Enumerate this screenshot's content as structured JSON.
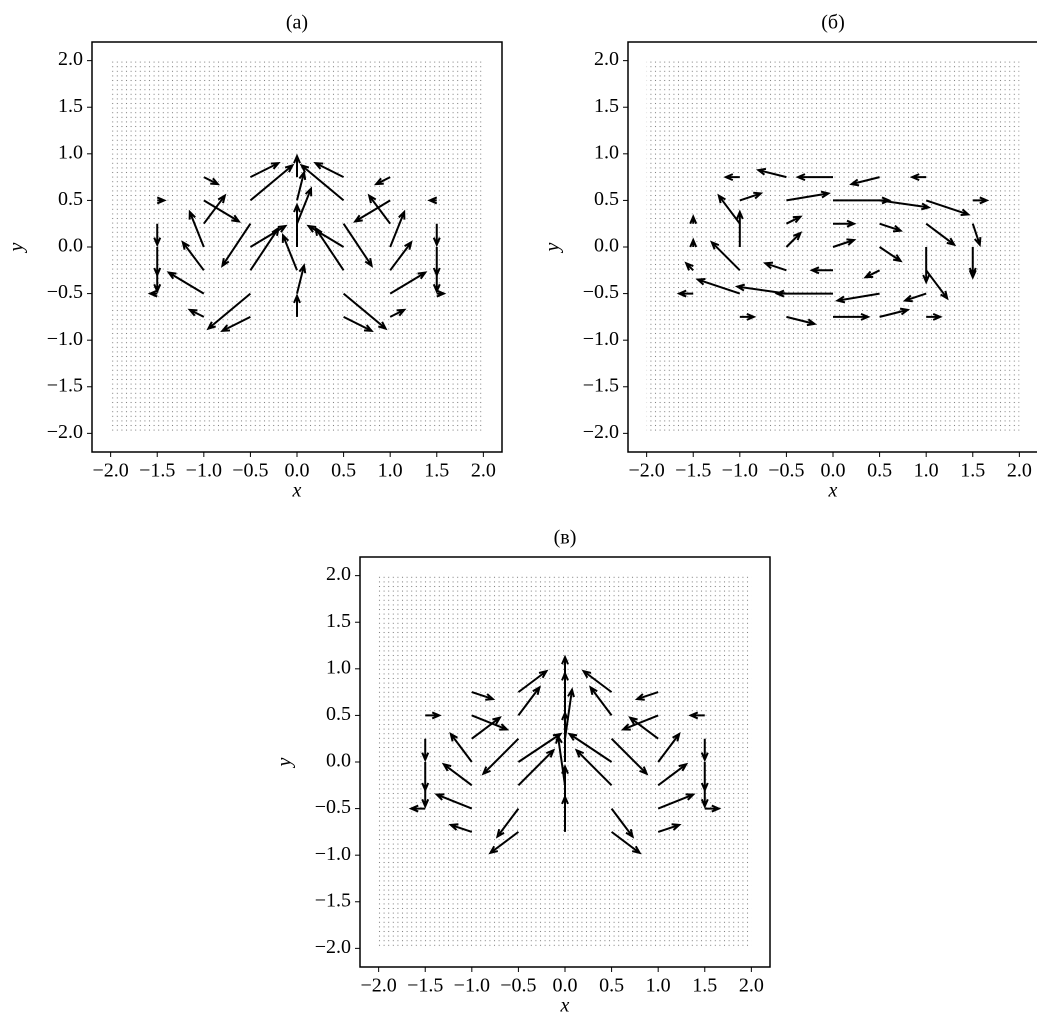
{
  "chart_data": [
    {
      "type": "quiver",
      "title": "(a)",
      "x_label": "x",
      "y_label": "y",
      "xlim": [
        -2.2,
        2.2
      ],
      "ylim": [
        -2.2,
        2.2
      ],
      "xticks": [
        {
          "value": -2,
          "label": "−2.0"
        },
        {
          "value": -1.5,
          "label": "−1.5"
        },
        {
          "value": -1,
          "label": "−1.0"
        },
        {
          "value": -0.5,
          "label": "−0.5"
        },
        {
          "value": 0,
          "label": "0.0"
        },
        {
          "value": 0.5,
          "label": "0.5"
        },
        {
          "value": 1,
          "label": "1.0"
        },
        {
          "value": 1.5,
          "label": "1.5"
        },
        {
          "value": 2,
          "label": "2.0"
        }
      ],
      "yticks": [
        {
          "value": -2,
          "label": "−2.0"
        },
        {
          "value": -1.5,
          "label": "−1.5"
        },
        {
          "value": -1,
          "label": "−1.0"
        },
        {
          "value": -0.5,
          "label": "−0.5"
        },
        {
          "value": 0,
          "label": "0.0"
        },
        {
          "value": 0.5,
          "label": "0.5"
        },
        {
          "value": 1,
          "label": "1.0"
        },
        {
          "value": 1.5,
          "label": "1.5"
        },
        {
          "value": 2,
          "label": "2.0"
        }
      ],
      "x": [
        -1.5,
        -1,
        -0.5,
        0,
        0.5,
        1,
        1.5
      ],
      "y": [
        0.75,
        0.5,
        0.25,
        0,
        -0.25,
        -0.5,
        -0.75
      ],
      "u": [
        [
          0,
          0.2,
          0.4,
          0,
          -0.4,
          -0.2,
          0
        ],
        [
          0.1,
          0.5,
          0.6,
          0.1,
          -0.6,
          -0.5,
          -0.1
        ],
        [
          0,
          0.3,
          -0.4,
          0.2,
          0.4,
          -0.3,
          0
        ],
        [
          0,
          -0.2,
          0.5,
          0,
          -0.5,
          0.2,
          0
        ],
        [
          0,
          -0.3,
          0.4,
          -0.2,
          -0.4,
          0.3,
          0
        ],
        [
          -0.1,
          -0.5,
          -0.6,
          0.1,
          0.6,
          0.5,
          0.1
        ],
        [
          0,
          -0.2,
          -0.4,
          0,
          0.4,
          0.2,
          0
        ]
      ],
      "v": [
        [
          0,
          -0.1,
          0.2,
          0.3,
          0.2,
          -0.1,
          0
        ],
        [
          0,
          -0.3,
          0.5,
          0.4,
          0.5,
          -0.3,
          0
        ],
        [
          -0.3,
          0.4,
          -0.6,
          0.5,
          -0.6,
          0.4,
          -0.3
        ],
        [
          -0.4,
          0.5,
          0.3,
          0.6,
          0.3,
          0.5,
          -0.4
        ],
        [
          -0.3,
          0.4,
          0.6,
          0.5,
          0.6,
          0.4,
          -0.3
        ],
        [
          0,
          0.3,
          -0.5,
          0.4,
          -0.5,
          0.3,
          0
        ],
        [
          0,
          0.1,
          -0.2,
          0.3,
          -0.2,
          0.1,
          0
        ]
      ]
    },
    {
      "type": "quiver",
      "title": "(б)",
      "x_label": "x",
      "y_label": "y",
      "xlim": [
        -2.2,
        2.2
      ],
      "ylim": [
        -2.2,
        2.2
      ],
      "xticks": [
        {
          "value": -2,
          "label": "−2.0"
        },
        {
          "value": -1.5,
          "label": "−1.5"
        },
        {
          "value": -1,
          "label": "−1.0"
        },
        {
          "value": -0.5,
          "label": "−0.5"
        },
        {
          "value": 0,
          "label": "0.0"
        },
        {
          "value": 0.5,
          "label": "0.5"
        },
        {
          "value": 1,
          "label": "1.0"
        },
        {
          "value": 1.5,
          "label": "1.5"
        },
        {
          "value": 2,
          "label": "2.0"
        }
      ],
      "yticks": [
        {
          "value": -2,
          "label": "−2.0"
        },
        {
          "value": -1.5,
          "label": "−1.5"
        },
        {
          "value": -1,
          "label": "−1.0"
        },
        {
          "value": -0.5,
          "label": "−0.5"
        },
        {
          "value": 0,
          "label": "0.0"
        },
        {
          "value": 0.5,
          "label": "0.5"
        },
        {
          "value": 1,
          "label": "1.0"
        },
        {
          "value": 1.5,
          "label": "1.5"
        },
        {
          "value": 2,
          "label": "2.0"
        }
      ],
      "x": [
        -1.5,
        -1,
        -0.5,
        0,
        0.5,
        1,
        1.5
      ],
      "y": [
        0.75,
        0.5,
        0.25,
        0,
        -0.25,
        -0.5,
        -0.75
      ],
      "u": [
        [
          0,
          -0.2,
          -0.4,
          -0.5,
          -0.4,
          -0.2,
          0
        ],
        [
          0,
          0.3,
          0.6,
          0.8,
          0.7,
          0.6,
          0.2
        ],
        [
          0,
          -0.3,
          0.2,
          0.3,
          0.3,
          0.4,
          0.1
        ],
        [
          0,
          0,
          0.2,
          0.3,
          0.3,
          0,
          0
        ],
        [
          -0.1,
          -0.4,
          -0.3,
          -0.3,
          -0.2,
          0.3,
          0
        ],
        [
          -0.2,
          -0.6,
          -0.7,
          -0.8,
          -0.6,
          -0.3,
          0
        ],
        [
          0,
          0.2,
          0.4,
          0.5,
          0.4,
          0.2,
          0
        ]
      ],
      "v": [
        [
          0,
          0,
          0.1,
          0,
          -0.1,
          0,
          0
        ],
        [
          0,
          0.1,
          0.1,
          0,
          -0.1,
          -0.2,
          0
        ],
        [
          0.1,
          0.4,
          0.1,
          0,
          -0.1,
          -0.3,
          -0.3
        ],
        [
          0.1,
          0.5,
          0.2,
          0.1,
          -0.2,
          -0.5,
          -0.4
        ],
        [
          0.1,
          0.4,
          0.1,
          0,
          -0.1,
          -0.4,
          -0.1
        ],
        [
          0,
          0.2,
          0.1,
          0,
          -0.1,
          -0.1,
          0
        ],
        [
          0,
          0,
          -0.1,
          0,
          0.1,
          0,
          0
        ]
      ]
    },
    {
      "type": "quiver",
      "title": "(в)",
      "x_label": "x",
      "y_label": "y",
      "xlim": [
        -2.2,
        2.2
      ],
      "ylim": [
        -2.2,
        2.2
      ],
      "xticks": [
        {
          "value": -2,
          "label": "−2.0"
        },
        {
          "value": -1.5,
          "label": "−1.5"
        },
        {
          "value": -1,
          "label": "−1.0"
        },
        {
          "value": -0.5,
          "label": "−0.5"
        },
        {
          "value": 0,
          "label": "0.0"
        },
        {
          "value": 0.5,
          "label": "0.5"
        },
        {
          "value": 1,
          "label": "1.0"
        },
        {
          "value": 1.5,
          "label": "1.5"
        },
        {
          "value": 2,
          "label": "2.0"
        }
      ],
      "yticks": [
        {
          "value": -2,
          "label": "−2.0"
        },
        {
          "value": -1.5,
          "label": "−1.5"
        },
        {
          "value": -1,
          "label": "−1.0"
        },
        {
          "value": -0.5,
          "label": "−0.5"
        },
        {
          "value": 0,
          "label": "0.0"
        },
        {
          "value": 0.5,
          "label": "0.5"
        },
        {
          "value": 1,
          "label": "1.0"
        },
        {
          "value": 1.5,
          "label": "1.5"
        },
        {
          "value": 2,
          "label": "2.0"
        }
      ],
      "x": [
        -1.5,
        -1,
        -0.5,
        0,
        0.5,
        1,
        1.5
      ],
      "y": [
        0.75,
        0.5,
        0.25,
        0,
        -0.25,
        -0.5,
        -0.75
      ],
      "u": [
        [
          0,
          0.3,
          0.4,
          0,
          -0.4,
          -0.3,
          0
        ],
        [
          0.2,
          0.5,
          0.3,
          0,
          -0.3,
          -0.5,
          -0.2
        ],
        [
          0,
          0.4,
          -0.5,
          0.1,
          0.5,
          -0.4,
          0
        ],
        [
          0,
          -0.3,
          0.6,
          0,
          -0.6,
          0.3,
          0
        ],
        [
          0,
          -0.4,
          0.5,
          -0.1,
          -0.5,
          0.4,
          0
        ],
        [
          -0.2,
          -0.5,
          -0.3,
          0,
          0.3,
          0.5,
          0.2
        ],
        [
          0,
          -0.3,
          -0.4,
          0,
          0.4,
          0.3,
          0
        ]
      ],
      "v": [
        [
          0,
          -0.1,
          0.3,
          0.5,
          0.3,
          -0.1,
          0
        ],
        [
          0,
          -0.2,
          0.4,
          0.6,
          0.4,
          -0.2,
          0
        ],
        [
          -0.3,
          0.3,
          -0.5,
          0.7,
          -0.5,
          0.3,
          -0.3
        ],
        [
          -0.4,
          0.4,
          0.4,
          0.7,
          0.4,
          0.4,
          -0.4
        ],
        [
          -0.3,
          0.3,
          0.5,
          0.7,
          0.5,
          0.3,
          -0.3
        ],
        [
          0,
          0.2,
          -0.4,
          0.6,
          -0.4,
          0.2,
          0
        ],
        [
          0,
          0.1,
          -0.3,
          0.5,
          -0.3,
          0.1,
          0
        ]
      ]
    }
  ]
}
